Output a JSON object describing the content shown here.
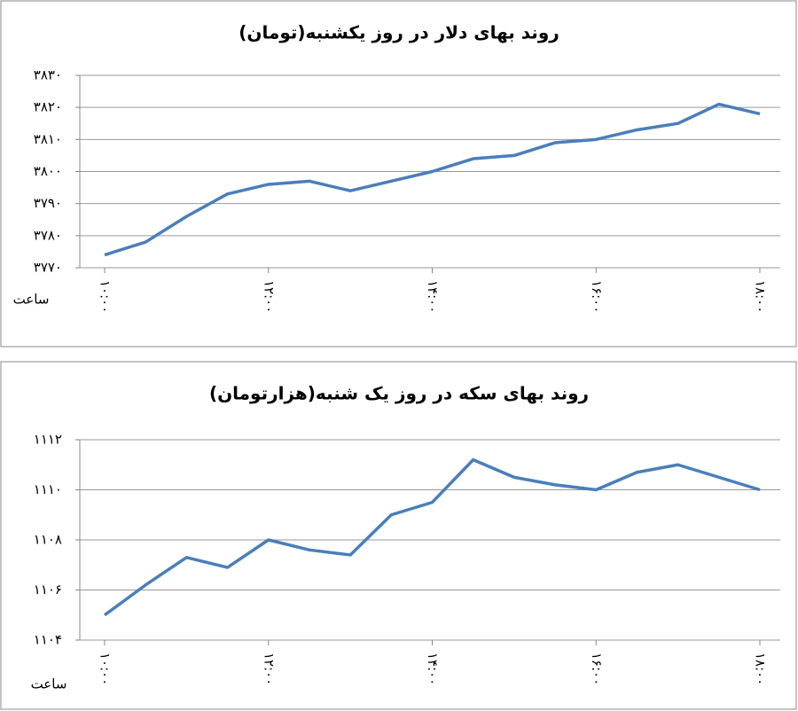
{
  "chart_data": [
    {
      "type": "line",
      "title": "روند بهای دلار در روز یکشنبه(تومان)",
      "xlabel": "ساعت",
      "categories": [
        "۱۰:۰۰",
        null,
        null,
        null,
        "۱۲:۰۰",
        null,
        null,
        null,
        "۱۴:۰۰",
        null,
        null,
        null,
        "۱۶:۰۰",
        null,
        null,
        null,
        "۱۸:۰۰"
      ],
      "values": [
        3774,
        3778,
        3786,
        3793,
        3796,
        3797,
        3794,
        3797,
        3800,
        3804,
        3805,
        3809,
        3810,
        3813,
        3815,
        3821,
        3818
      ],
      "color": "#4a7ebb",
      "grid": true,
      "ylim": [
        3770,
        3830
      ],
      "yticks": [
        {
          "value": 3770,
          "label": "۳۷۷۰"
        },
        {
          "value": 3780,
          "label": "۳۷۸۰"
        },
        {
          "value": 3790,
          "label": "۳۷۹۰"
        },
        {
          "value": 3800,
          "label": "۳۸۰۰"
        },
        {
          "value": 3810,
          "label": "۳۸۱۰"
        },
        {
          "value": 3820,
          "label": "۳۸۲۰"
        },
        {
          "value": 3830,
          "label": "۳۸۳۰"
        }
      ]
    },
    {
      "type": "line",
      "title": "روند بهای سکه در روز یک شنبه(هزارتومان)",
      "xlabel": "ساعت",
      "categories": [
        "۱۰:۰۰",
        null,
        null,
        null,
        "۱۲:۰۰",
        null,
        null,
        null,
        "۱۴:۰۰",
        null,
        null,
        null,
        "۱۶:۰۰",
        null,
        null,
        null,
        "۱۸:۰۰"
      ],
      "values": [
        1105,
        1106.2,
        1107.3,
        1106.9,
        1108,
        1107.6,
        1107.4,
        1109,
        1109.5,
        1111.2,
        1110.5,
        1110.2,
        1110,
        1110.7,
        1111,
        1110.5,
        1110
      ],
      "color": "#4a7ebb",
      "grid": true,
      "ylim": [
        1104,
        1112
      ],
      "yticks": [
        {
          "value": 1104,
          "label": "۱۱۰۴"
        },
        {
          "value": 1106,
          "label": "۱۱۰۶"
        },
        {
          "value": 1108,
          "label": "۱۱۰۸"
        },
        {
          "value": 1110,
          "label": "۱۱۱۰"
        },
        {
          "value": 1112,
          "label": "۱۱۱۲"
        }
      ]
    }
  ]
}
